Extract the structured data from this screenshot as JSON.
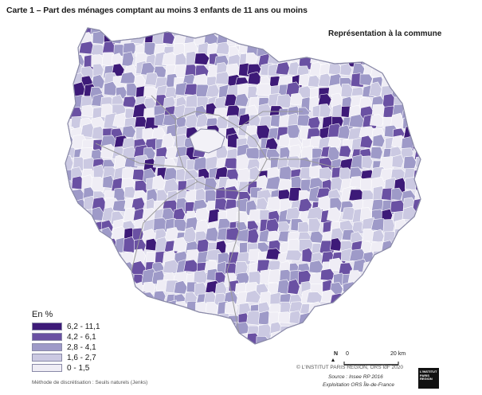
{
  "title": "Carte 1 – Part des ménages comptant au moins 3 enfants de 11 ans ou moins",
  "subtitle": "Représentation à la commune",
  "legend": {
    "title": "En %",
    "classes": [
      {
        "label": "6,2 - 11,1",
        "color": "#3d1a78"
      },
      {
        "label": "4,2 - 6,1",
        "color": "#6a51a3"
      },
      {
        "label": "2,8 - 4,1",
        "color": "#9e9ac8"
      },
      {
        "label": "1,6 - 2,7",
        "color": "#cbc9e2"
      },
      {
        "label": "0 - 1,5",
        "color": "#efedf5"
      }
    ]
  },
  "method": "Méthode de discrétisation : Seuils naturels (Jenks)",
  "scale": {
    "north": "N",
    "zero": "0",
    "end": "20 km"
  },
  "credit": "© L'INSTITUT PARIS REGION, ORS ÎdF 2020",
  "source": "Source : Insee RP 2016",
  "exploitation": "Exploitation ORS Île-de-France",
  "logo": "L'INSTITUT PARIS REGION",
  "colors": {
    "border": "#8a8aa8",
    "dept_border": "#9a9a9a"
  }
}
